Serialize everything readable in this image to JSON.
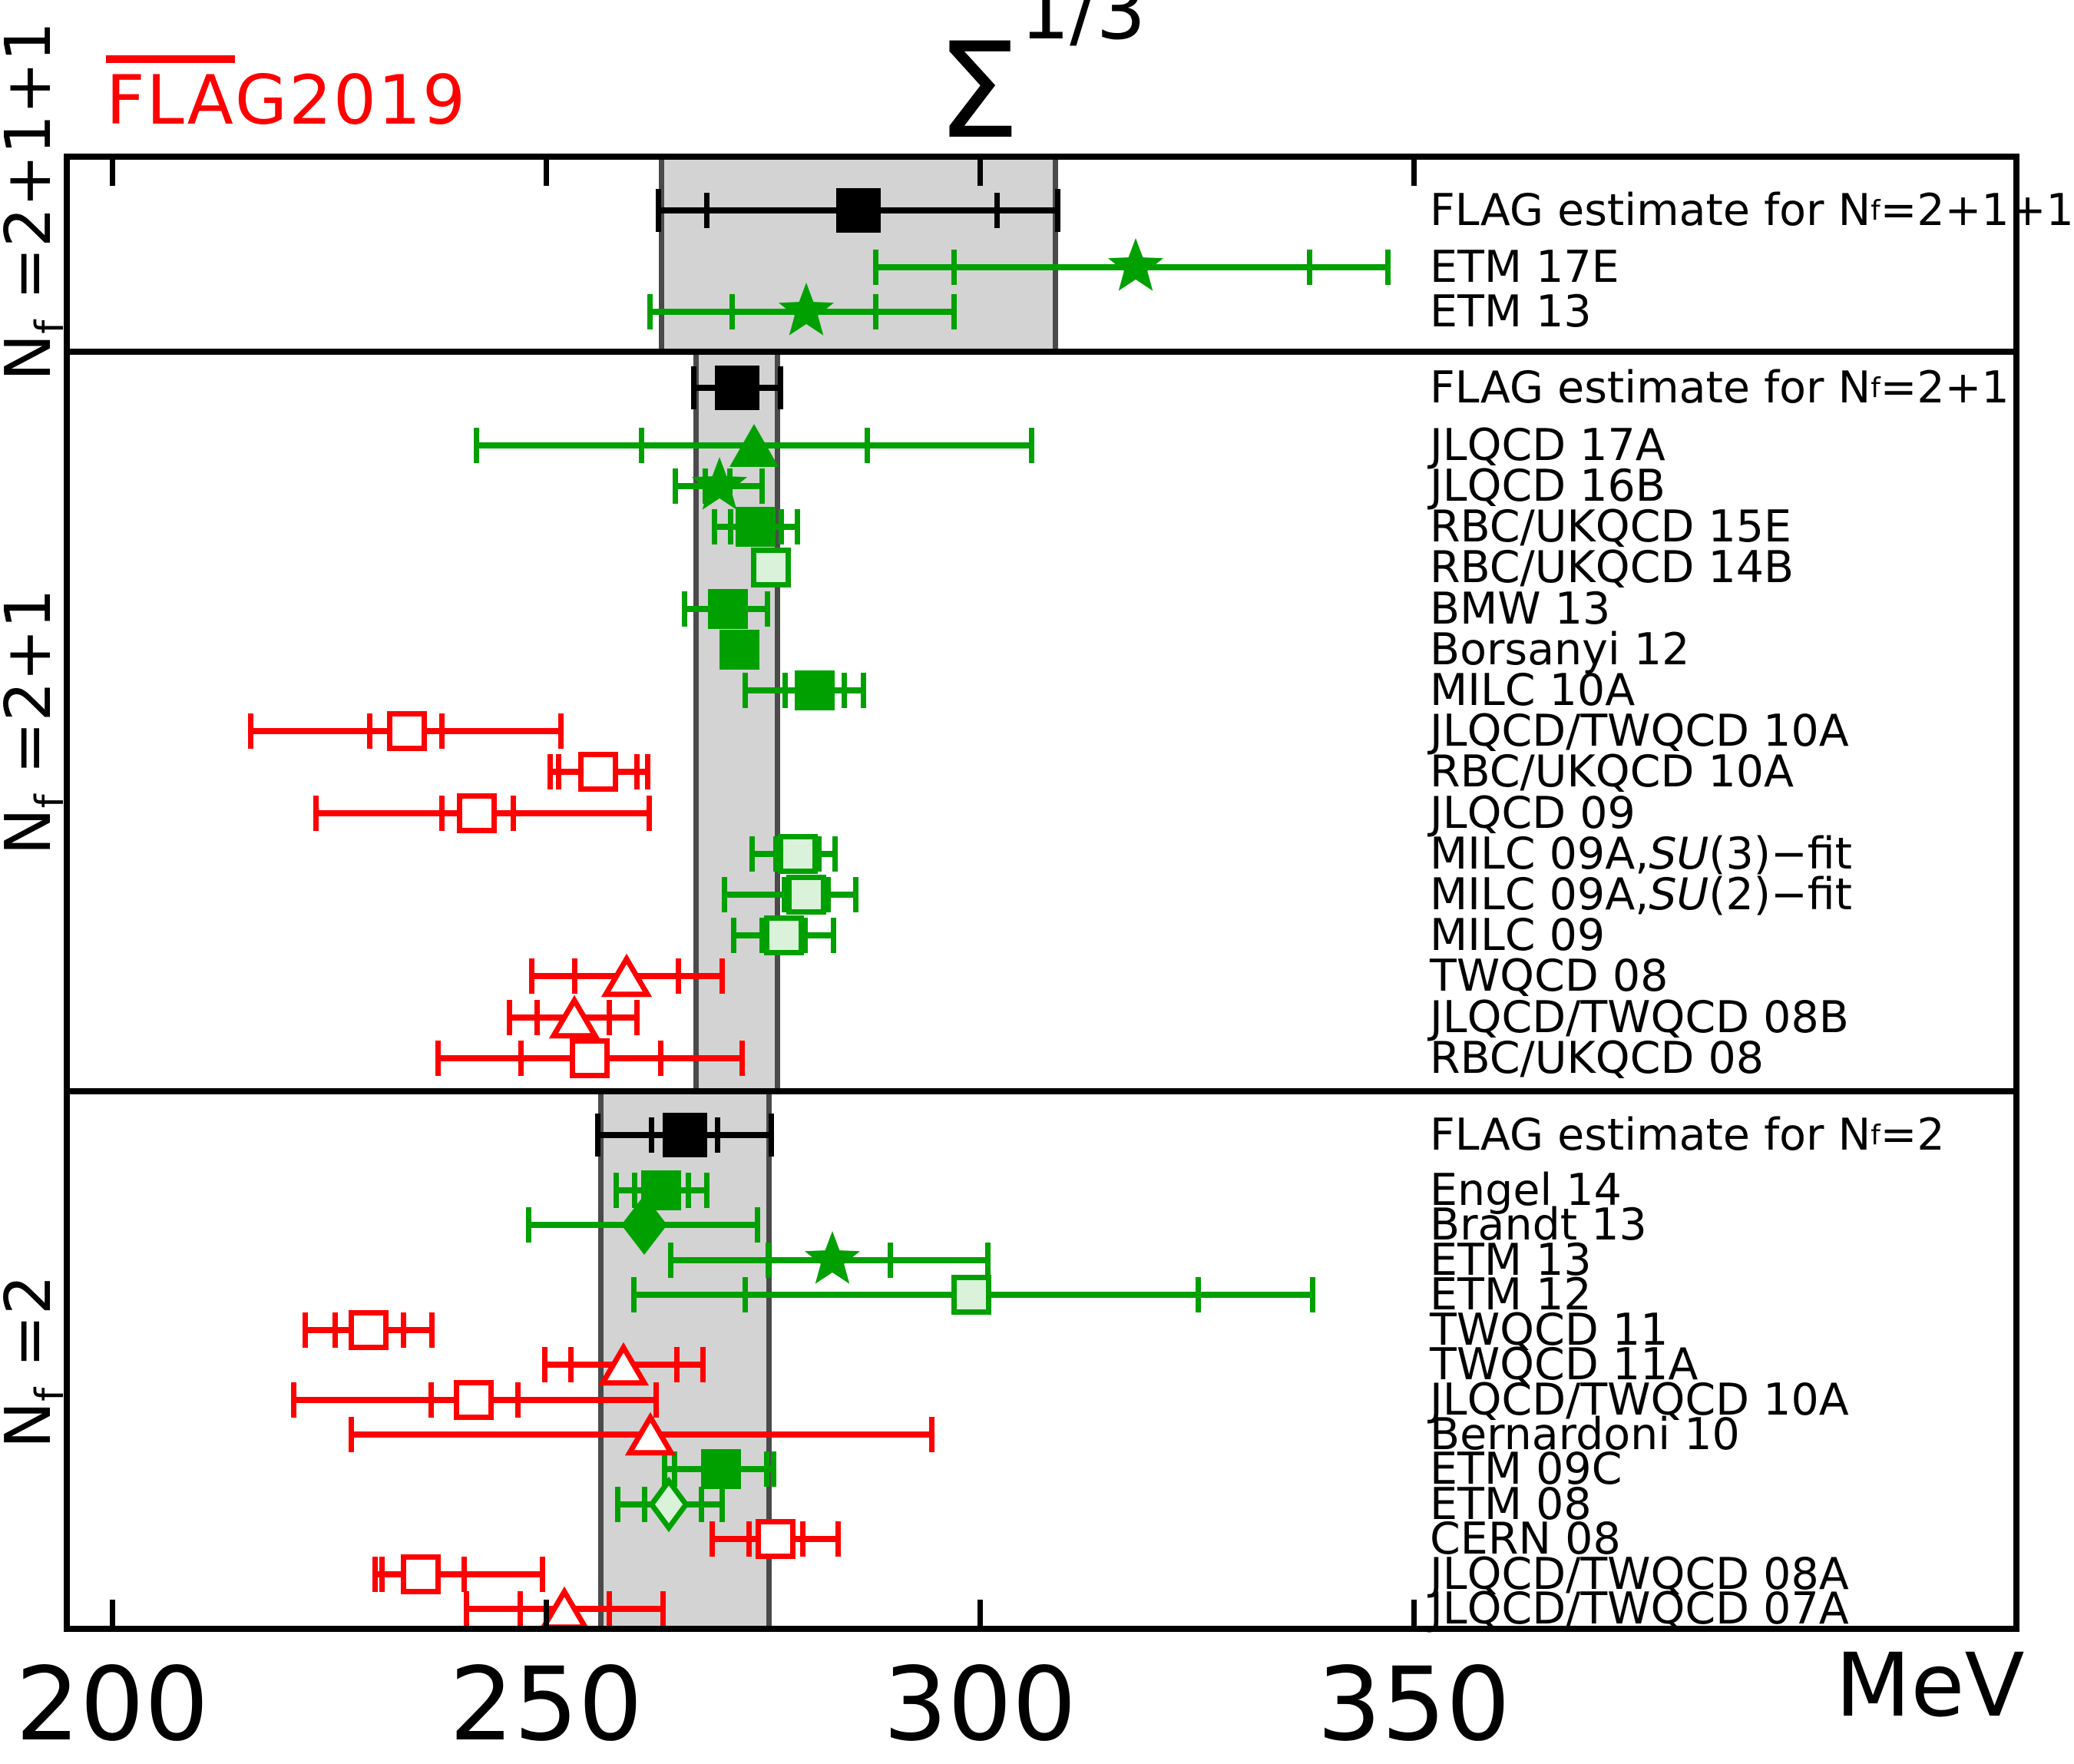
{
  "logo": {
    "overlined": "FLA",
    "rest": "G2019"
  },
  "chart_data": {
    "type": "errorbar",
    "title_symbol": "Σ",
    "title_exponent": "1/3",
    "axis": {
      "unit": "MeV",
      "ticks": [
        200,
        250,
        300,
        350
      ],
      "range_mev": [
        194,
        420
      ]
    },
    "colors": {
      "green": "#00a000",
      "green_fill_light": "#d9f2d9",
      "red": "#ff0000",
      "black": "#000000",
      "band": "#d3d3d3",
      "band_edge": "#4a4a4a",
      "logo_red": "#ff0000"
    },
    "legend_note": "filled green = estimate-quality result, open light green = green open symbol, open red/white = red open symbol, black = FLAG estimate",
    "sections": [
      {
        "nf_label": "N_f =2+1+1",
        "band_mev": [
          263,
          309
        ],
        "rows": [
          {
            "label": "FLAG estimate for N_f =2+1+1",
            "marker": "square",
            "style": "black",
            "value": 286,
            "inner": [
              268.5,
              302
            ],
            "outer": [
              263,
              309
            ]
          },
          {
            "label": "ETM 17E",
            "marker": "star",
            "style": "green-solid",
            "value": 318,
            "inner": [
              297,
              338
            ],
            "outer": [
              288,
              347
            ]
          },
          {
            "label": "ETM 13",
            "marker": "star",
            "style": "green-solid",
            "value": 280,
            "inner": [
              271.5,
              288
            ],
            "outer": [
              262,
              297
            ]
          }
        ]
      },
      {
        "nf_label": "N_f =2+1",
        "band_mev": [
          267,
          277
        ],
        "rows": [
          {
            "label": "FLAG estimate for N_f =2+1",
            "marker": "square",
            "style": "black",
            "value": 272,
            "inner": null,
            "outer": [
              267,
              277
            ]
          },
          {
            "label": "JLQCD 17A",
            "marker": "triangle",
            "style": "green-solid",
            "value": 274,
            "inner": [
              261,
              287
            ],
            "outer": [
              242,
              306
            ]
          },
          {
            "label": "JLQCD 16B",
            "marker": "star",
            "style": "green-solid",
            "value": 270,
            "inner": [
              268.4,
              271.2
            ],
            "outer": [
              264.9,
              274.9
            ]
          },
          {
            "label": "RBC/UKQCD 15E",
            "marker": "square",
            "style": "green-solid",
            "value": 274.2,
            "inner": [
              271.3,
              277.1
            ],
            "outer": [
              269.4,
              279
            ]
          },
          {
            "label": "RBC/UKQCD 14B",
            "marker": "square",
            "style": "green-open",
            "value": 275.9,
            "inner": null,
            "outer": [
              274.5,
              277.3
            ]
          },
          {
            "label": "BMW 13",
            "marker": "square",
            "style": "green-solid",
            "value": 271,
            "inner": null,
            "outer": [
              266,
              275.5
            ]
          },
          {
            "label": "Borsanyi 12",
            "marker": "square",
            "style": "green-solid",
            "value": 272.3,
            "inner": null,
            "outer": [
              270.4,
              274.2
            ]
          },
          {
            "label": "MILC 10A",
            "marker": "square",
            "style": "green-solid",
            "value": 281,
            "inner": [
              277.6,
              284.4
            ],
            "outer": [
              273,
              286.6
            ]
          },
          {
            "label": "JLQCD/TWQCD 10A",
            "marker": "square",
            "style": "red-open",
            "value": 234,
            "inner": [
              229.7,
              238
            ],
            "outer": [
              216,
              251.7
            ]
          },
          {
            "label": "RBC/UKQCD 10A",
            "marker": "square",
            "style": "red-open",
            "value": 256,
            "inner": [
              251.5,
              260.5
            ],
            "outer": [
              250.5,
              261.7
            ]
          },
          {
            "label": "JLQCD 09",
            "marker": "square",
            "style": "red-open",
            "value": 242,
            "inner": [
              238,
              246.2
            ],
            "outer": [
              223.5,
              261.9
            ]
          },
          {
            "label": "MILC 09A, SU(3)−fit",
            "marker": "square",
            "style": "green-open",
            "value": 279,
            "inner": [
              276.5,
              281.5
            ],
            "outer": [
              273.8,
              283.3
            ]
          },
          {
            "label": "MILC 09A, SU(2)−fit",
            "marker": "square",
            "style": "green-open",
            "value": 280,
            "inner": [
              277.5,
              282.5
            ],
            "outer": [
              270.6,
              285.7
            ]
          },
          {
            "label": "MILC 09",
            "marker": "square",
            "style": "green-open",
            "value": 277.4,
            "inner": [
              274.9,
              279.9
            ],
            "outer": [
              271.6,
              283.1
            ]
          },
          {
            "label": "TWQCD 08",
            "marker": "triangle",
            "style": "red-open",
            "value": 259.3,
            "inner": [
              253.3,
              265.3
            ],
            "outer": [
              248.4,
              270.3
            ]
          },
          {
            "label": "JLQCD/TWQCD 08B",
            "marker": "triangle",
            "style": "red-open",
            "value": 253.3,
            "inner": [
              249,
              257.3
            ],
            "outer": [
              245.8,
              260.5
            ]
          },
          {
            "label": "RBC/UKQCD 08",
            "marker": "square",
            "style": "red-open",
            "value": 255,
            "inner": [
              247.1,
              263.2
            ],
            "outer": [
              237.6,
              272.6
            ]
          }
        ]
      },
      {
        "nf_label": "N_f =2",
        "band_mev": [
          256,
          276
        ],
        "rows": [
          {
            "label": "FLAG estimate for N_f =2",
            "marker": "square",
            "style": "black",
            "value": 266,
            "inner": [
              262.2,
              269.8
            ],
            "outer": [
              256,
              276
            ]
          },
          {
            "label": "Engel 14",
            "marker": "square",
            "style": "green-solid",
            "value": 263.3,
            "inner": [
              260.2,
              266.4
            ],
            "outer": [
              258.1,
              268.5
            ]
          },
          {
            "label": "Brandt 13",
            "marker": "diamond",
            "style": "green-solid",
            "value": 261.3,
            "inner": null,
            "outer": [
              248,
              274.4
            ]
          },
          {
            "label": "ETM 13",
            "marker": "star",
            "style": "green-solid",
            "value": 283,
            "inner": [
              275.6,
              289.7
            ],
            "outer": [
              264.4,
              300.9
            ]
          },
          {
            "label": "ETM 12",
            "marker": "square",
            "style": "green-open",
            "value": 299,
            "inner": [
              273,
              325.2
            ],
            "outer": [
              260.1,
              338.4
            ]
          },
          {
            "label": "TWQCD 11",
            "marker": "square",
            "style": "red-open",
            "value": 229.6,
            "inner": [
              225.7,
              233.6
            ],
            "outer": [
              222.3,
              236.9
            ]
          },
          {
            "label": "TWQCD 11A",
            "marker": "triangle",
            "style": "red-open",
            "value": 258.9,
            "inner": [
              252.9,
              265.1
            ],
            "outer": [
              249.9,
              268.1
            ]
          },
          {
            "label": "JLQCD/TWQCD 10A",
            "marker": "square",
            "style": "red-open",
            "value": 241.7,
            "inner": [
              236.8,
              246.8
            ],
            "outer": [
              220.9,
              262.7
            ]
          },
          {
            "label": "Bernardoni 10",
            "marker": "triangle",
            "style": "red-open",
            "value": 262,
            "inner": null,
            "outer": [
              227.6,
              294.5
            ]
          },
          {
            "label": "ETM 09C",
            "marker": "square",
            "style": "green-solid",
            "value": 270.2,
            "inner": [
              264.8,
              275.4
            ],
            "outer": [
              263.7,
              276.2
            ]
          },
          {
            "label": "ETM 08",
            "marker": "diamond",
            "style": "green-open",
            "value": 264.2,
            "inner": [
              261.4,
              267.9
            ],
            "outer": [
              258.3,
              270.3
            ]
          },
          {
            "label": "CERN 08",
            "marker": "square",
            "style": "red-open",
            "value": 276.5,
            "inner": [
              273.4,
              279.6
            ],
            "outer": [
              269.2,
              283.7
            ]
          },
          {
            "label": "JLQCD/TWQCD 08A",
            "marker": "square",
            "style": "red-open",
            "value": 235.6,
            "inner": [
              231.1,
              240.6
            ],
            "outer": [
              230.3,
              249.6
            ]
          },
          {
            "label": "JLQCD/TWQCD 07A",
            "marker": "triangle",
            "style": "red-open",
            "value": 252.1,
            "inner": [
              247,
              257.3
            ],
            "outer": [
              240.8,
              263.5
            ]
          }
        ]
      }
    ]
  }
}
